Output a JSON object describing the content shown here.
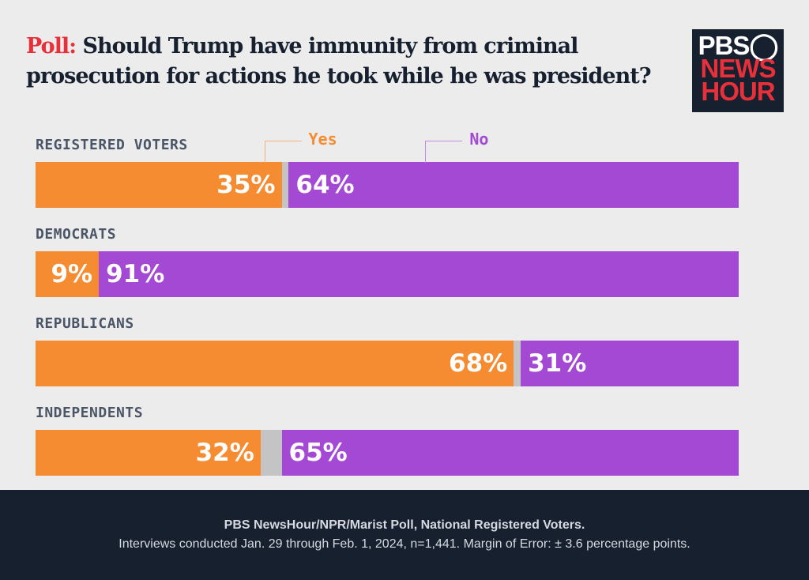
{
  "header": {
    "title_prefix": "Poll:",
    "title": "Should Trump have immunity from criminal prosecution for actions he took while he was president?",
    "logo_text": "PBS NEWS HOUR"
  },
  "chart_data": {
    "type": "bar",
    "orientation": "horizontal",
    "stacked": true,
    "categories": [
      "REGISTERED VOTERS",
      "DEMOCRATS",
      "REPUBLICANS",
      "INDEPENDENTS"
    ],
    "series": [
      {
        "name": "Yes",
        "color": "#f68c32",
        "values": [
          35,
          9,
          68,
          32
        ],
        "labels": [
          "35%",
          "9%",
          "68%",
          "32%"
        ]
      },
      {
        "name": "No",
        "color": "#a349d3",
        "values": [
          64,
          91,
          31,
          65
        ],
        "labels": [
          "64%",
          "91%",
          "31%",
          "65%"
        ]
      }
    ],
    "remainder_color": "#c4c4c4",
    "xlim": [
      0,
      100
    ],
    "grid": false,
    "legend": "top"
  },
  "footer": {
    "source": "PBS NewsHour/NPR/Marist Poll, National Registered Voters.",
    "details": "Interviews conducted Jan. 29 through Feb. 1, 2024, n=1,441. Margin of Error:  ± 3.6 percentage points."
  }
}
